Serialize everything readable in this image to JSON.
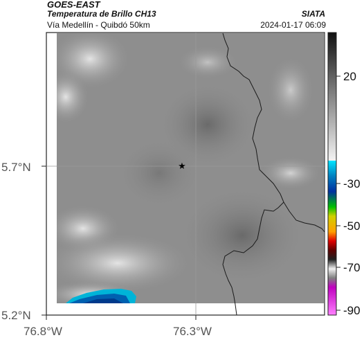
{
  "header": {
    "source": "GOES-EAST",
    "title": "Temperatura de Brillo CH13",
    "subtitle": "Vía Medellín - Quibdó 50km",
    "org": "SIATA",
    "timestamp": "2024-01-17 06:09"
  },
  "axes": {
    "lat_labels": [
      "5.7°N",
      "5.2°N"
    ],
    "lon_labels": [
      "76.8°W",
      "76.3°W"
    ]
  },
  "colorbar": {
    "tick_labels": [
      "20",
      "-30",
      "-50",
      "-70",
      "-90"
    ]
  },
  "map": {
    "marker": "star-icon",
    "gridlines": true
  },
  "colors": {
    "cloud_gray": "#8c8c8c",
    "cold_cyan": "#00b4d8",
    "cold_blue": "#003a8c",
    "border": "#222222"
  }
}
